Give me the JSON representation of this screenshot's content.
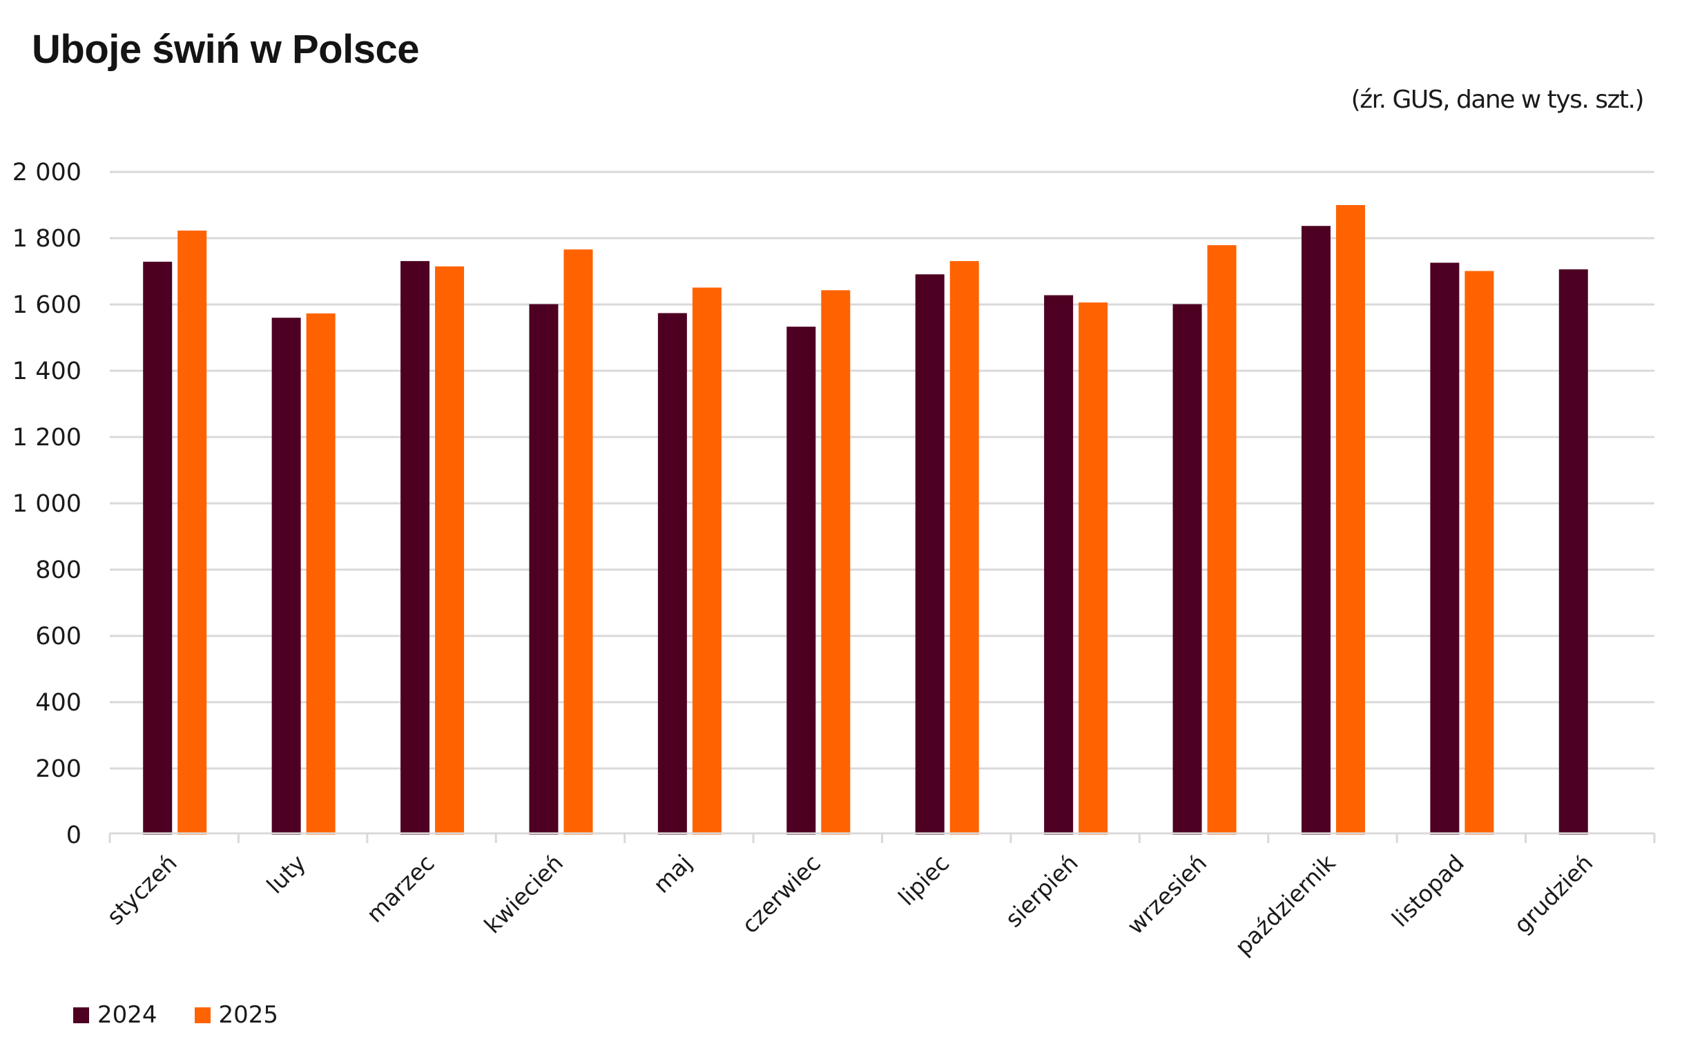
{
  "header": {
    "title": "Uboje świń w Polsce",
    "subtitle": "(źr. GUS, dane w tys. szt.)"
  },
  "colors": {
    "series_2024": "#4E0022",
    "series_2025": "#FF6200",
    "grid": "#D9D9D9",
    "text": "#1A1A1A"
  },
  "legend": [
    {
      "label": "2024",
      "color": "#4E0022"
    },
    {
      "label": "2025",
      "color": "#FF6200"
    }
  ],
  "chart_data": {
    "type": "bar",
    "title": "Uboje świń w Polsce",
    "subtitle": "(źr. GUS, dane w tys. szt.)",
    "xlabel": "",
    "ylabel": "",
    "unit": "tys. szt.",
    "categories": [
      "styczeń",
      "luty",
      "marzec",
      "kwiecień",
      "maj",
      "czerwiec",
      "lipiec",
      "sierpień",
      "wrzesień",
      "październik",
      "listopad",
      "grudzień"
    ],
    "series": [
      {
        "name": "2024",
        "color": "#4E0022",
        "values": [
          1729,
          1560,
          1731,
          1601,
          1574,
          1533,
          1691,
          1628,
          1601,
          1837,
          1726,
          1706
        ]
      },
      {
        "name": "2025",
        "color": "#FF6200",
        "values": [
          1823,
          1573,
          1715,
          1766,
          1651,
          1643,
          1731,
          1606,
          1779,
          1900,
          1701,
          null
        ]
      }
    ],
    "ylim": [
      0,
      2000
    ],
    "yticks": [
      0,
      200,
      400,
      600,
      800,
      1000,
      1200,
      1400,
      1600,
      1800,
      2000
    ],
    "ytick_labels": [
      "0",
      "200",
      "400",
      "600",
      "800",
      "1 000",
      "1 200",
      "1 400",
      "1 600",
      "1 800",
      "2 000"
    ],
    "grid": true,
    "legend_position": "bottom-left",
    "xtick_rotation": "-45"
  }
}
